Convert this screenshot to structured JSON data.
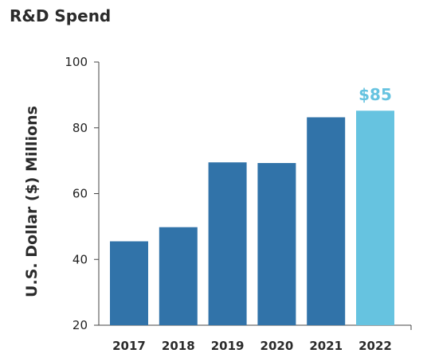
{
  "chart_data": {
    "type": "bar",
    "title": "R&D Spend",
    "ylabel": "U.S. Dollar ($) Millions",
    "xlabel": "",
    "categories": [
      "2017",
      "2018",
      "2019",
      "2020",
      "2021",
      "2022"
    ],
    "values": [
      45.5,
      49.8,
      69.5,
      69.3,
      83.2,
      85.2
    ],
    "ylim": [
      20,
      100
    ],
    "yticks": [
      20,
      40,
      60,
      80,
      100
    ],
    "grid": false,
    "highlight": {
      "index": 5,
      "label": "$85"
    },
    "colors": {
      "bar": "#3173a9",
      "highlight": "#66c3e0",
      "axis": "#444444"
    }
  }
}
